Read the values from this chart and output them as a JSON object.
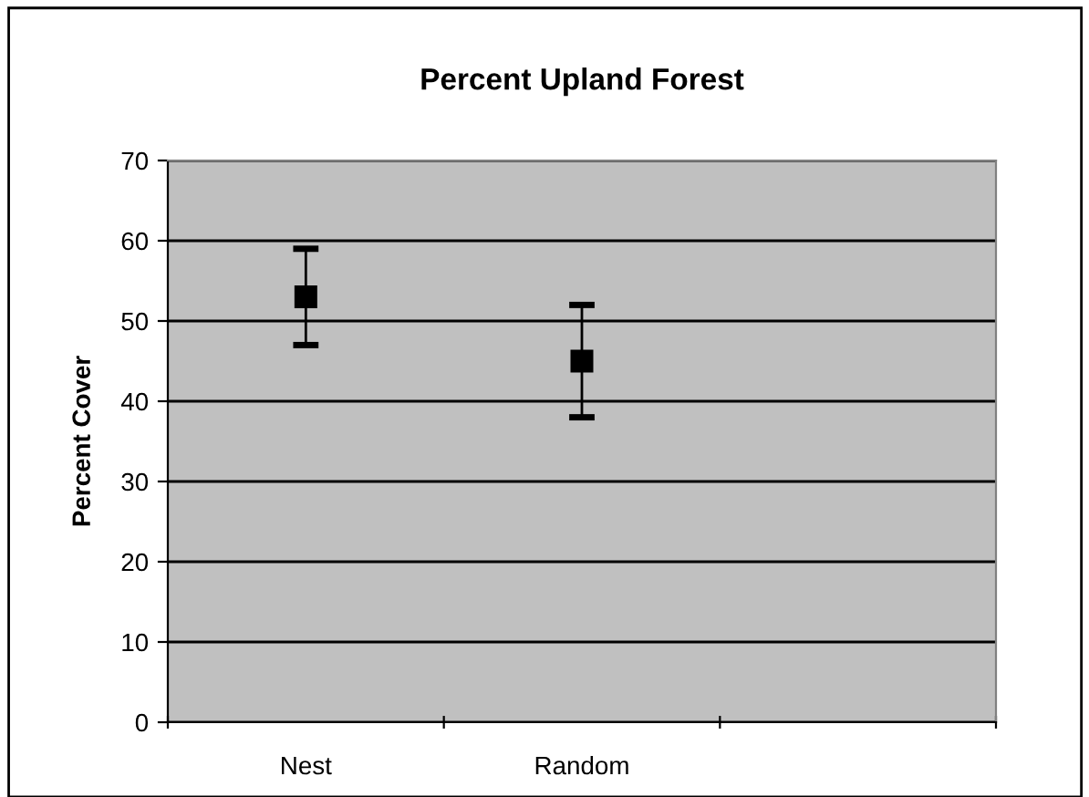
{
  "chart_data": {
    "type": "scatter",
    "title": "Percent Upland Forest",
    "ylabel": "Percent Cover",
    "categories": [
      "Nest",
      "Random",
      null
    ],
    "series": [
      {
        "color": "#000000",
        "values": [
          53,
          45,
          null
        ],
        "errors": [
          [
            47,
            59
          ],
          [
            38,
            52
          ],
          null
        ]
      }
    ],
    "ylim": [
      0,
      70
    ],
    "yticks": [
      0,
      10,
      20,
      30,
      40,
      50,
      60,
      70
    ],
    "grid": "y",
    "marker": "square",
    "legend": false
  }
}
